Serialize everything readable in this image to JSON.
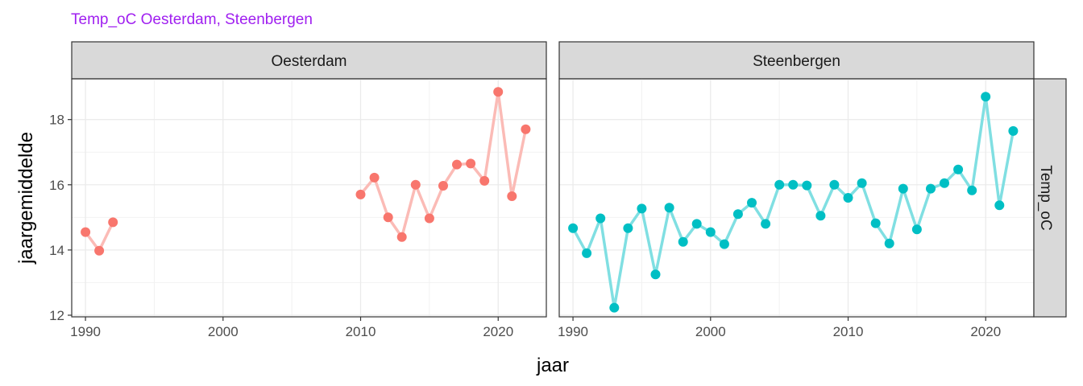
{
  "chart_data": {
    "type": "line",
    "title": "Temp_oC Oesterdam, Steenbergen",
    "title_color": "#a020f0",
    "xlabel": "jaar",
    "ylabel": "jaargemiddelde",
    "facet_row_label": "Temp_oC",
    "xlim": [
      1989,
      2023.5
    ],
    "ylim": [
      11.95,
      19.25
    ],
    "x_ticks": [
      1990,
      2000,
      2010,
      2020
    ],
    "y_ticks": [
      12,
      14,
      16,
      18
    ],
    "grid": true,
    "legend": "none",
    "panels": [
      {
        "name": "Oesterdam",
        "point_color": "#f8766d",
        "line_color": "#fbbbb6",
        "segments": [
          {
            "x": [
              1990,
              1991,
              1992
            ],
            "y": [
              14.55,
              13.98,
              14.85
            ]
          },
          {
            "x": [
              2010,
              2011,
              2012,
              2013,
              2014,
              2015,
              2016,
              2017,
              2018,
              2019,
              2020,
              2021,
              2022
            ],
            "y": [
              15.7,
              16.22,
              15.0,
              14.4,
              16.0,
              14.97,
              15.97,
              16.62,
              16.65,
              16.12,
              18.85,
              15.65,
              17.7
            ]
          }
        ]
      },
      {
        "name": "Steenbergen",
        "point_color": "#00bfc4",
        "line_color": "#80dfe2",
        "segments": [
          {
            "x": [
              1990,
              1991,
              1992,
              1993,
              1994,
              1995,
              1996,
              1997,
              1998,
              1999,
              2000,
              2001,
              2002,
              2003,
              2004,
              2005,
              2006,
              2007,
              2008,
              2009,
              2010,
              2011,
              2012,
              2013,
              2014,
              2015,
              2016,
              2017,
              2018,
              2019,
              2020,
              2021,
              2022
            ],
            "y": [
              14.67,
              13.9,
              14.97,
              12.23,
              14.67,
              15.27,
              13.25,
              15.3,
              14.25,
              14.8,
              14.55,
              14.18,
              15.1,
              15.45,
              14.8,
              16.0,
              16.0,
              15.98,
              15.05,
              16.0,
              15.6,
              16.05,
              14.82,
              14.2,
              15.88,
              14.63,
              15.88,
              16.05,
              16.47,
              15.83,
              18.7,
              15.37,
              17.65
            ]
          }
        ]
      }
    ]
  }
}
